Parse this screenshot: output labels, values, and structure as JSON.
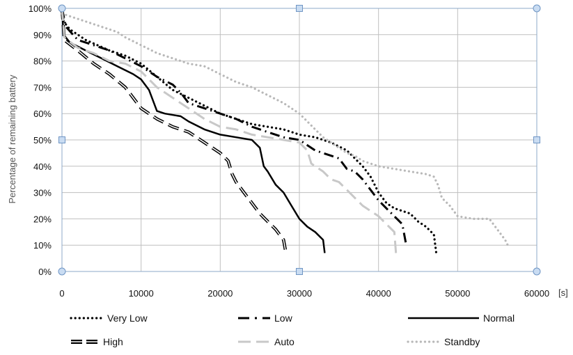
{
  "chart_data": {
    "type": "line",
    "title": "",
    "xlabel": "",
    "x_unit": "[s]",
    "ylabel": "Percentage of remaining battery",
    "xlim": [
      0,
      60000
    ],
    "ylim": [
      0,
      100
    ],
    "x_ticks": [
      "0",
      "10000",
      "20000",
      "30000",
      "40000",
      "50000",
      "60000"
    ],
    "y_ticks": [
      "0%",
      "10%",
      "20%",
      "30%",
      "40%",
      "50%",
      "60%",
      "70%",
      "80%",
      "90%",
      "100%"
    ],
    "grid": true,
    "legend_position": "bottom",
    "series": [
      {
        "name": "Very Low",
        "color": "#000000",
        "style": "dotted",
        "points": [
          [
            0,
            100
          ],
          [
            200,
            95
          ],
          [
            1000,
            92
          ],
          [
            3000,
            88
          ],
          [
            6000,
            84
          ],
          [
            8000,
            82
          ],
          [
            10000,
            79
          ],
          [
            12000,
            74
          ],
          [
            14000,
            69
          ],
          [
            16000,
            66
          ],
          [
            18000,
            63
          ],
          [
            20000,
            60
          ],
          [
            22000,
            58
          ],
          [
            24000,
            56
          ],
          [
            26000,
            55
          ],
          [
            28000,
            54
          ],
          [
            30000,
            52
          ],
          [
            32000,
            51
          ],
          [
            34000,
            49
          ],
          [
            36000,
            46
          ],
          [
            37000,
            43
          ],
          [
            38000,
            40
          ],
          [
            39000,
            36
          ],
          [
            40000,
            30
          ],
          [
            41000,
            26
          ],
          [
            42000,
            24
          ],
          [
            44000,
            22
          ],
          [
            45000,
            19
          ],
          [
            46000,
            17
          ],
          [
            47000,
            14
          ],
          [
            47300,
            7
          ]
        ]
      },
      {
        "name": "Low",
        "color": "#000000",
        "style": "dash-dot",
        "points": [
          [
            0,
            100
          ],
          [
            500,
            93
          ],
          [
            2000,
            88
          ],
          [
            4000,
            86
          ],
          [
            6000,
            84
          ],
          [
            8000,
            81
          ],
          [
            10000,
            78
          ],
          [
            12000,
            74
          ],
          [
            14000,
            71
          ],
          [
            15000,
            68
          ],
          [
            16000,
            64
          ],
          [
            18000,
            62
          ],
          [
            20000,
            60
          ],
          [
            22000,
            58
          ],
          [
            24000,
            55
          ],
          [
            26000,
            53
          ],
          [
            28000,
            51
          ],
          [
            30000,
            50
          ],
          [
            31000,
            48
          ],
          [
            32000,
            46
          ],
          [
            34000,
            44
          ],
          [
            35000,
            43
          ],
          [
            36000,
            39
          ],
          [
            37000,
            38
          ],
          [
            38000,
            35
          ],
          [
            39000,
            31
          ],
          [
            40000,
            27
          ],
          [
            41000,
            24
          ],
          [
            42000,
            21
          ],
          [
            43000,
            18
          ],
          [
            43500,
            10
          ]
        ]
      },
      {
        "name": "Normal",
        "color": "#000000",
        "style": "solid",
        "points": [
          [
            0,
            100
          ],
          [
            200,
            90
          ],
          [
            1000,
            87
          ],
          [
            3000,
            84
          ],
          [
            5000,
            81
          ],
          [
            7000,
            78
          ],
          [
            9000,
            75
          ],
          [
            10000,
            73
          ],
          [
            11000,
            69
          ],
          [
            12000,
            61
          ],
          [
            13000,
            60
          ],
          [
            15000,
            59
          ],
          [
            16000,
            57
          ],
          [
            18000,
            54
          ],
          [
            20000,
            52
          ],
          [
            22000,
            51
          ],
          [
            24000,
            50
          ],
          [
            25000,
            47
          ],
          [
            25500,
            40
          ],
          [
            26000,
            38
          ],
          [
            27000,
            33
          ],
          [
            28000,
            30
          ],
          [
            29000,
            25
          ],
          [
            30000,
            20
          ],
          [
            31000,
            17
          ],
          [
            32000,
            15
          ],
          [
            33000,
            12
          ],
          [
            33200,
            7
          ]
        ]
      },
      {
        "name": "High",
        "color": "#000000",
        "style": "double",
        "points": [
          [
            0,
            100
          ],
          [
            300,
            88
          ],
          [
            2000,
            84
          ],
          [
            4000,
            79
          ],
          [
            6000,
            75
          ],
          [
            8000,
            70
          ],
          [
            10000,
            62
          ],
          [
            12000,
            58
          ],
          [
            14000,
            55
          ],
          [
            16000,
            53
          ],
          [
            18000,
            49
          ],
          [
            20000,
            45
          ],
          [
            21000,
            42
          ],
          [
            21500,
            37
          ],
          [
            22000,
            34
          ],
          [
            23000,
            30
          ],
          [
            24000,
            26
          ],
          [
            25000,
            22
          ],
          [
            26000,
            19
          ],
          [
            27000,
            16
          ],
          [
            28000,
            12
          ],
          [
            28300,
            7
          ]
        ]
      },
      {
        "name": "Auto",
        "color": "#c8c8c8",
        "style": "long-dash",
        "points": [
          [
            0,
            100
          ],
          [
            300,
            89
          ],
          [
            2000,
            85
          ],
          [
            4000,
            83
          ],
          [
            6000,
            80
          ],
          [
            8000,
            79
          ],
          [
            10000,
            76
          ],
          [
            12000,
            70
          ],
          [
            14000,
            66
          ],
          [
            16000,
            62
          ],
          [
            18000,
            58
          ],
          [
            20000,
            55
          ],
          [
            22000,
            54
          ],
          [
            24000,
            52
          ],
          [
            26000,
            51
          ],
          [
            28000,
            50
          ],
          [
            30000,
            49
          ],
          [
            31000,
            46
          ],
          [
            31500,
            41
          ],
          [
            32000,
            40
          ],
          [
            33000,
            38
          ],
          [
            34000,
            35
          ],
          [
            35000,
            34
          ],
          [
            36000,
            31
          ],
          [
            37000,
            28
          ],
          [
            38000,
            25
          ],
          [
            39000,
            23
          ],
          [
            40000,
            21
          ],
          [
            41000,
            18
          ],
          [
            42000,
            15
          ],
          [
            42200,
            7
          ]
        ]
      },
      {
        "name": "Standby",
        "color": "#b8b8b8",
        "style": "dotted",
        "points": [
          [
            0,
            98
          ],
          [
            2000,
            96
          ],
          [
            4000,
            94
          ],
          [
            6000,
            92
          ],
          [
            7000,
            91
          ],
          [
            8000,
            89
          ],
          [
            10000,
            86
          ],
          [
            12000,
            83
          ],
          [
            14000,
            81
          ],
          [
            16000,
            79
          ],
          [
            18000,
            78
          ],
          [
            20000,
            75
          ],
          [
            22000,
            72
          ],
          [
            24000,
            70
          ],
          [
            26000,
            67
          ],
          [
            28000,
            64
          ],
          [
            30000,
            60
          ],
          [
            31000,
            57
          ],
          [
            32000,
            54
          ],
          [
            33000,
            51
          ],
          [
            34000,
            49
          ],
          [
            35000,
            47
          ],
          [
            36000,
            45
          ],
          [
            37000,
            44
          ],
          [
            38000,
            42
          ],
          [
            40000,
            40
          ],
          [
            42000,
            39
          ],
          [
            44000,
            38
          ],
          [
            46000,
            37
          ],
          [
            47000,
            36
          ],
          [
            47500,
            33
          ],
          [
            48000,
            28
          ],
          [
            49000,
            25
          ],
          [
            50000,
            21
          ],
          [
            52000,
            20
          ],
          [
            54000,
            20
          ],
          [
            55000,
            16
          ],
          [
            56000,
            12
          ],
          [
            56500,
            9
          ]
        ]
      }
    ]
  }
}
